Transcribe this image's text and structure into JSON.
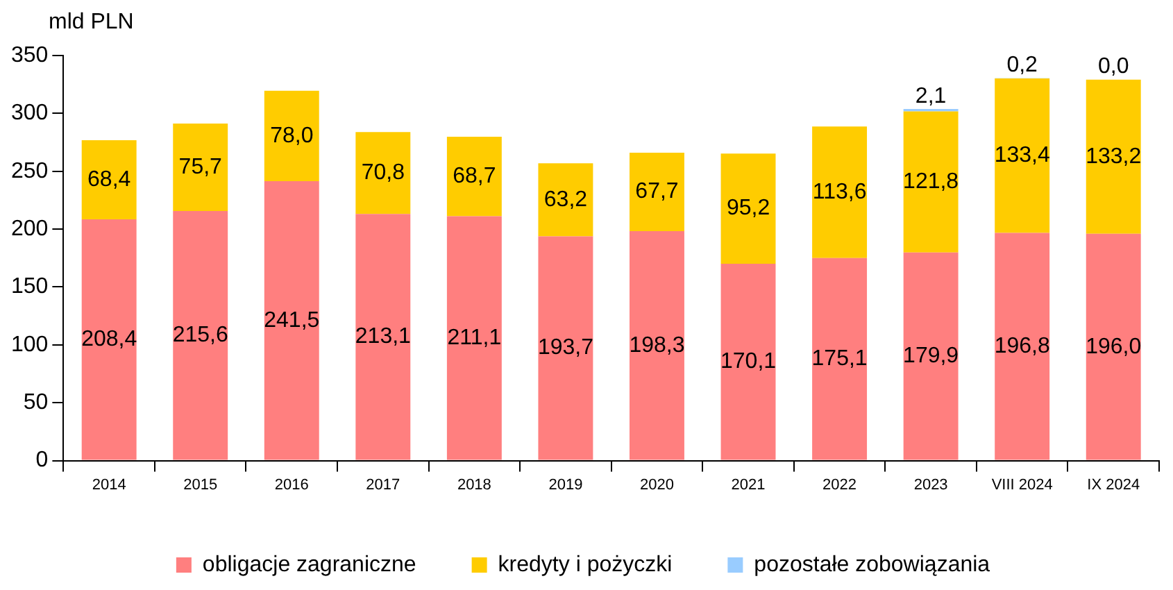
{
  "chart_data": {
    "type": "bar",
    "stacked": true,
    "ylabel": "mld PLN",
    "categories": [
      "2014",
      "2015",
      "2016",
      "2017",
      "2018",
      "2019",
      "2020",
      "2021",
      "2022",
      "2023",
      "VIII 2024",
      "IX 2024"
    ],
    "series": [
      {
        "name": "obligacje zagraniczne",
        "color": "#ff7f7f",
        "values": [
          208.4,
          215.6,
          241.5,
          213.1,
          211.1,
          193.7,
          198.3,
          170.1,
          175.1,
          179.9,
          196.8,
          196.0
        ],
        "value_labels": [
          "208,4",
          "215,6",
          "241,5",
          "213,1",
          "211,1",
          "193,7",
          "198,3",
          "170,1",
          "175,1",
          "179,9",
          "196,8",
          "196,0"
        ]
      },
      {
        "name": "kredyty i pożyczki",
        "color": "#ffcc00",
        "values": [
          68.4,
          75.7,
          78.0,
          70.8,
          68.7,
          63.2,
          67.7,
          95.2,
          113.6,
          121.8,
          133.4,
          133.2
        ],
        "value_labels": [
          "68,4",
          "75,7",
          "78,0",
          "70,8",
          "68,7",
          "63,2",
          "67,7",
          "95,2",
          "113,6",
          "121,8",
          "133,4",
          "133,2"
        ]
      },
      {
        "name": "pozostałe zobowiązania",
        "color": "#99ccff",
        "values": [
          null,
          null,
          null,
          null,
          null,
          null,
          null,
          null,
          null,
          2.1,
          0.2,
          0.0
        ],
        "value_labels": [
          null,
          null,
          null,
          null,
          null,
          null,
          null,
          null,
          null,
          "2,1",
          "0,2",
          "0,0"
        ]
      }
    ],
    "ylim": [
      0,
      350
    ],
    "yticks": [
      0,
      50,
      100,
      150,
      200,
      250,
      300,
      350
    ],
    "legend": "bottom"
  }
}
